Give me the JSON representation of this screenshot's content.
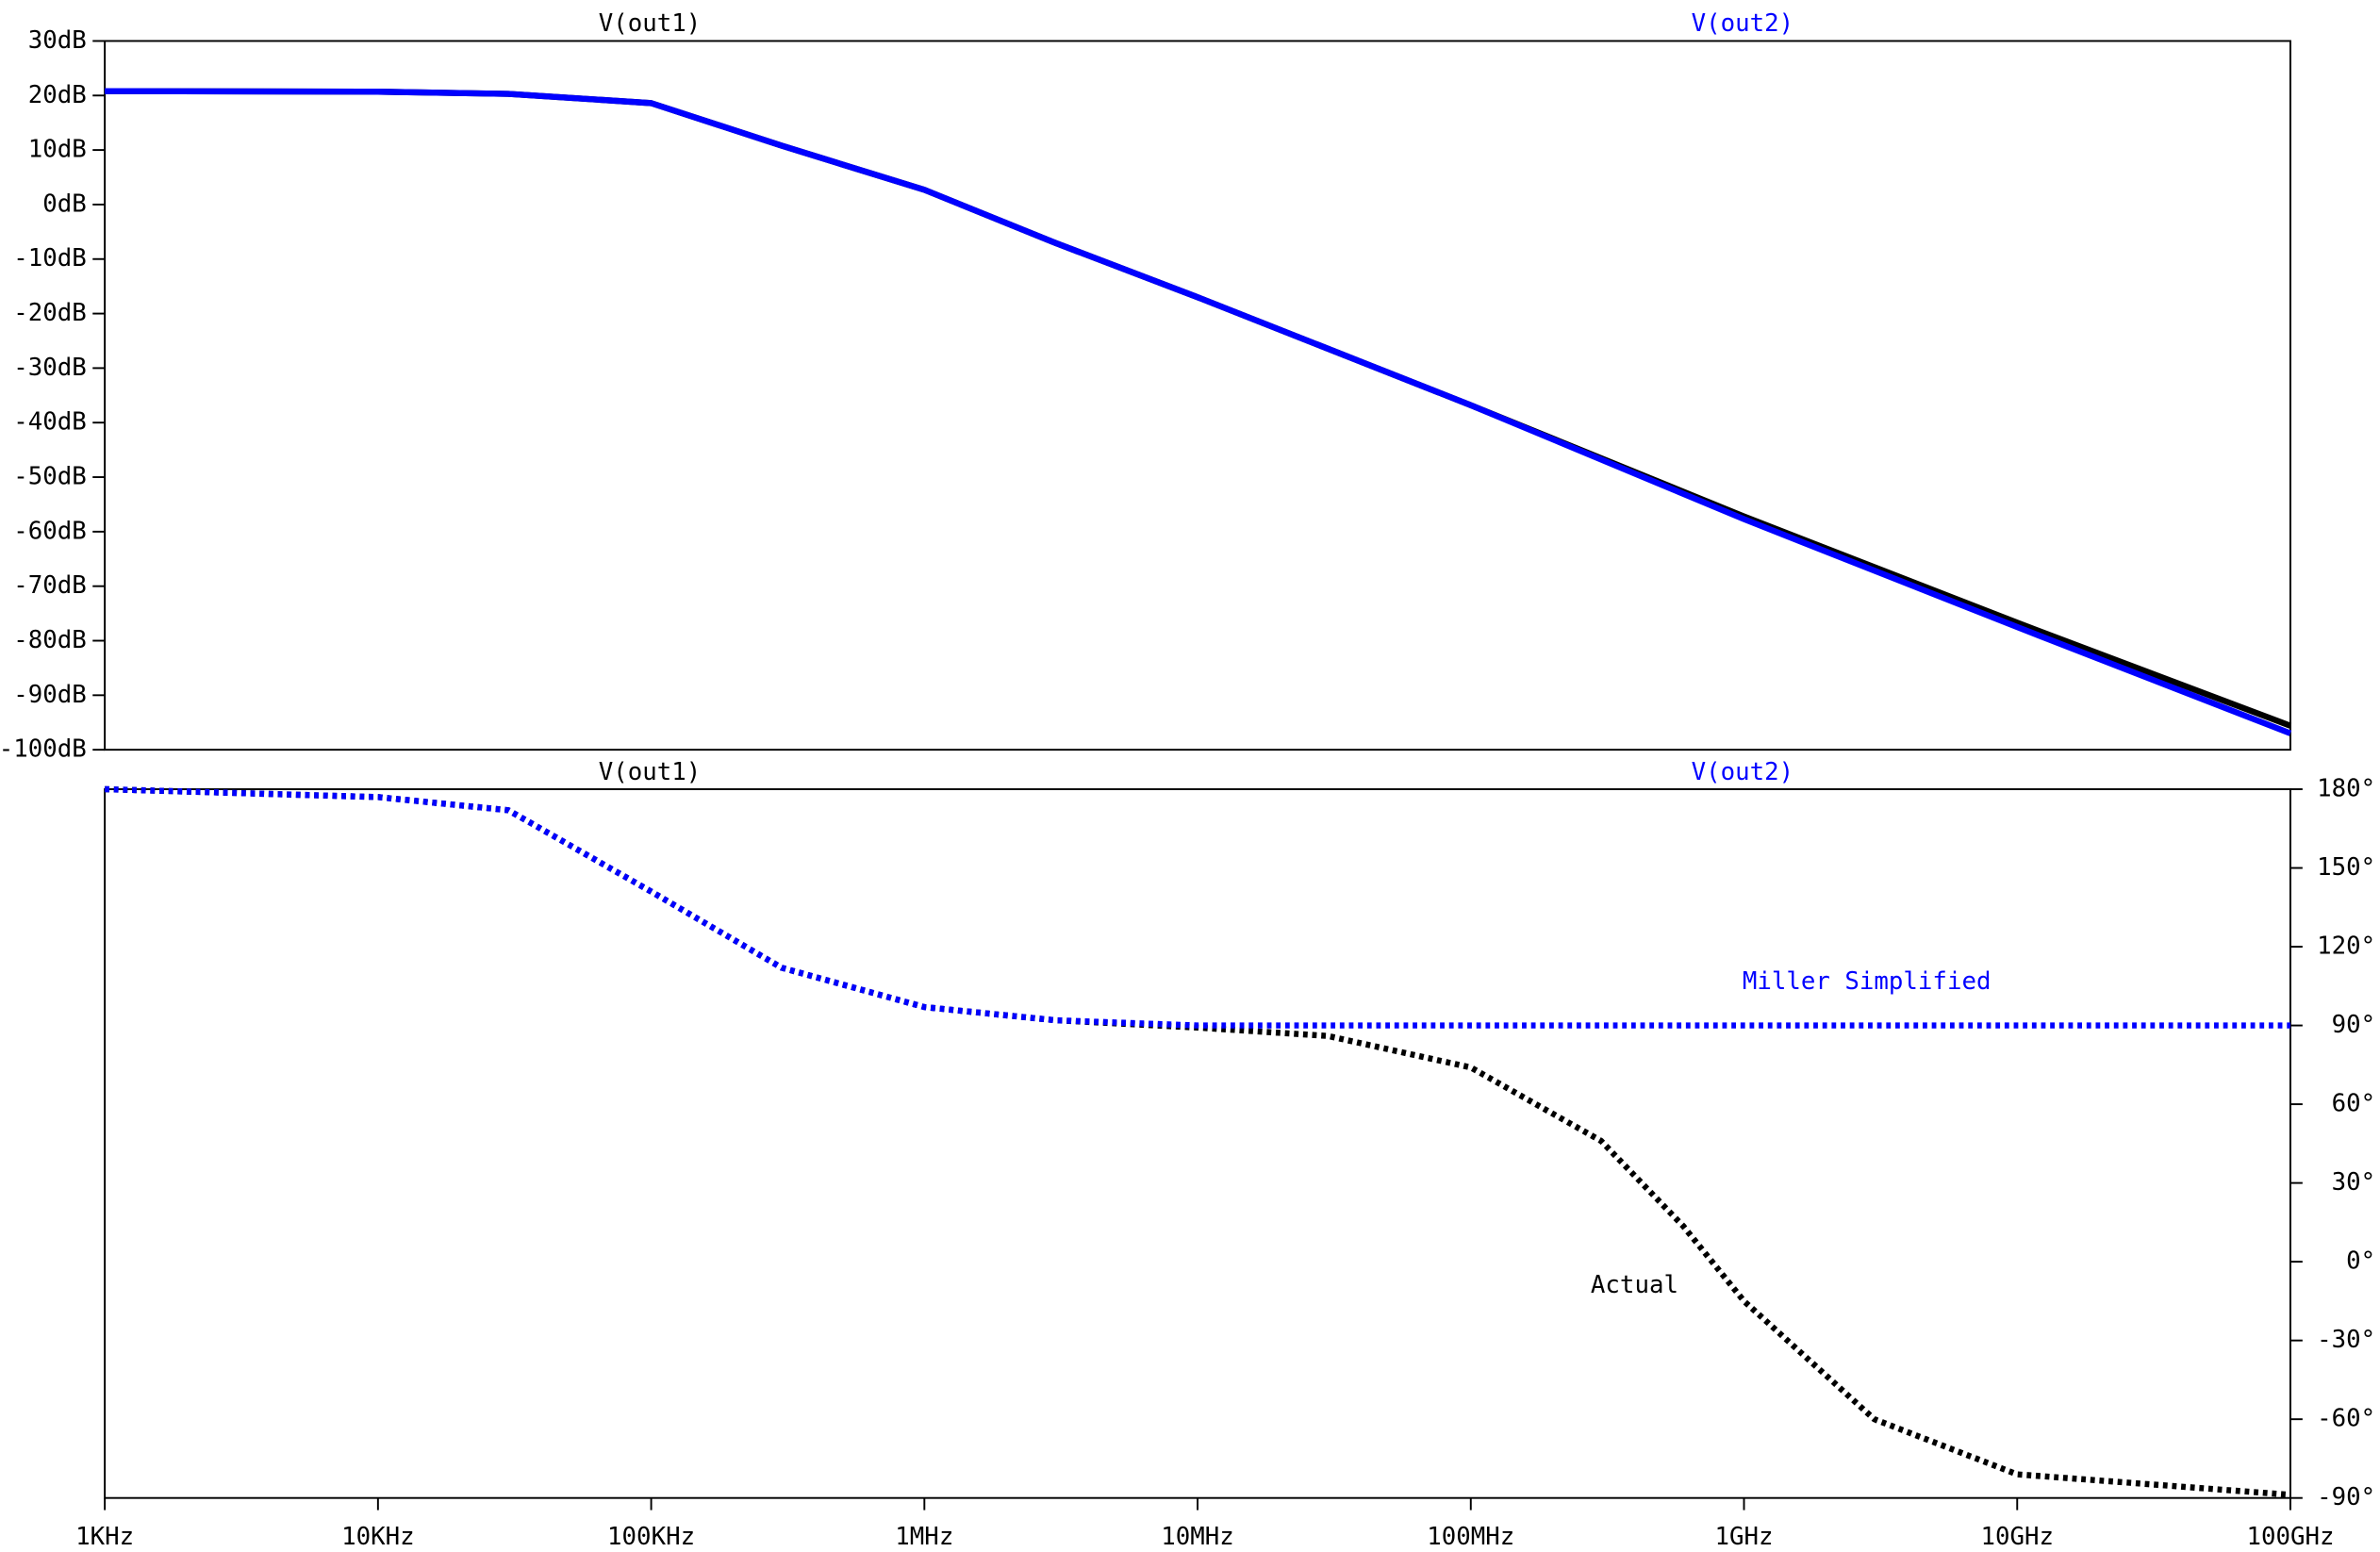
{
  "chart_data": [
    {
      "type": "line",
      "log_x": true,
      "yaxis_side": "left",
      "line_style": "solid",
      "x": [
        1000,
        10000,
        30000,
        100000,
        300000,
        1000000,
        3000000,
        10000000,
        100000000,
        1000000000,
        10000000000,
        100000000000
      ],
      "series": [
        {
          "name": "V(out1)",
          "color": "#000000",
          "values": [
            20.8,
            20.7,
            20.3,
            18.6,
            10.8,
            2.7,
            -7,
            -17,
            -36.8,
            -57.2,
            -76.7,
            -95.6
          ]
        },
        {
          "name": "V(out2)",
          "color": "#0000ff",
          "values": [
            20.8,
            20.7,
            20.3,
            18.6,
            10.8,
            2.7,
            -7,
            -17,
            -36.8,
            -57.7,
            -77.5,
            -97
          ]
        }
      ],
      "xlim": [
        1000,
        100000000000
      ],
      "ylim": [
        -100,
        30
      ],
      "yticks": [
        {
          "value": 30,
          "label": "30dB"
        },
        {
          "value": 20,
          "label": "20dB"
        },
        {
          "value": 10,
          "label": "10dB"
        },
        {
          "value": 0,
          "label": "0dB"
        },
        {
          "value": -10,
          "label": "-10dB"
        },
        {
          "value": -20,
          "label": "-20dB"
        },
        {
          "value": -30,
          "label": "-30dB"
        },
        {
          "value": -40,
          "label": "-40dB"
        },
        {
          "value": -50,
          "label": "-50dB"
        },
        {
          "value": -60,
          "label": "-60dB"
        },
        {
          "value": -70,
          "label": "-70dB"
        },
        {
          "value": -80,
          "label": "-80dB"
        },
        {
          "value": -90,
          "label": "-90dB"
        },
        {
          "value": -100,
          "label": "-100dB"
        }
      ]
    },
    {
      "type": "line",
      "log_x": true,
      "yaxis_side": "right",
      "line_style": "dotted",
      "x": [
        1000,
        10000,
        30000,
        100000,
        300000,
        1000000,
        3000000,
        10000000,
        30000000,
        100000000,
        300000000,
        600000000,
        1000000000,
        3000000000,
        10000000000,
        100000000000
      ],
      "series": [
        {
          "name": "V(out1)",
          "color": "#000000",
          "values": [
            180,
            177,
            172,
            141,
            112,
            97,
            92,
            89.2,
            86,
            74,
            46,
            13.5,
            -15,
            -60,
            -81,
            -88.8
          ]
        },
        {
          "name": "V(out2)",
          "color": "#0000ff",
          "values": [
            180,
            177,
            172,
            141,
            112,
            97,
            92,
            90,
            90,
            90,
            90,
            90,
            90,
            90,
            90,
            90
          ]
        }
      ],
      "xlim": [
        1000,
        100000000000
      ],
      "ylim": [
        -90,
        180
      ],
      "yticks": [
        {
          "value": 180,
          "label": "180°"
        },
        {
          "value": 150,
          "label": "150°"
        },
        {
          "value": 120,
          "label": "120°"
        },
        {
          "value": 90,
          "label": "90°"
        },
        {
          "value": 60,
          "label": "60°"
        },
        {
          "value": 30,
          "label": "30°"
        },
        {
          "value": 0,
          "label": "0°"
        },
        {
          "value": -30,
          "label": "-30°"
        },
        {
          "value": -60,
          "label": "-60°"
        },
        {
          "value": -90,
          "label": "-90°"
        }
      ],
      "xticks": [
        {
          "value": 1000,
          "label": "1KHz"
        },
        {
          "value": 10000,
          "label": "10KHz"
        },
        {
          "value": 100000,
          "label": "100KHz"
        },
        {
          "value": 1000000,
          "label": "1MHz"
        },
        {
          "value": 10000000,
          "label": "10MHz"
        },
        {
          "value": 100000000,
          "label": "100MHz"
        },
        {
          "value": 1000000000,
          "label": "1GHz"
        },
        {
          "value": 10000000000,
          "label": "10GHz"
        },
        {
          "value": 100000000000,
          "label": "100GHz"
        }
      ],
      "annotations": [
        {
          "text": "Miller Simplified",
          "color": "#0000ff"
        },
        {
          "text": "Actual",
          "color": "#000000"
        }
      ]
    }
  ]
}
